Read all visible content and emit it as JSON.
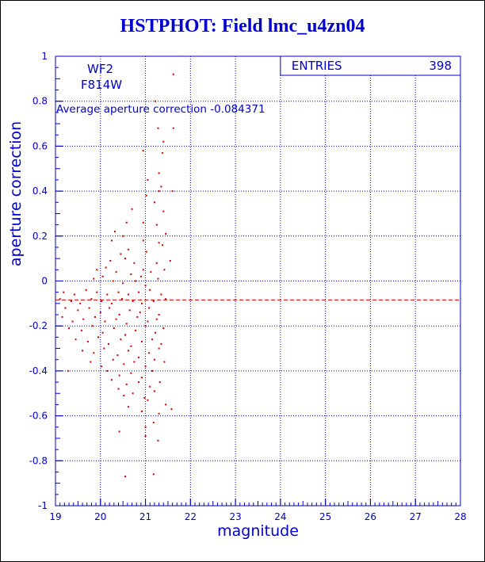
{
  "chart_data": {
    "type": "scatter",
    "title": "HSTPHOT: Field lmc_u4zn04",
    "xlabel": "magnitude",
    "ylabel": "aperture correction",
    "xlim": [
      19,
      28
    ],
    "ylim": [
      -1,
      1
    ],
    "xticks": [
      "19",
      "20",
      "21",
      "22",
      "23",
      "24",
      "25",
      "26",
      "27",
      "28"
    ],
    "yticks": [
      "-1",
      "-0.8",
      "-0.6",
      "-0.4",
      "-0.2",
      "0",
      "0.2",
      "0.4",
      "0.6",
      "0.8",
      "1"
    ],
    "grid": true,
    "labels": [
      "WF2",
      "F814W"
    ],
    "annotation": "Average aperture correction -0.084371",
    "stats": {
      "label": "ENTRIES",
      "value": "398"
    },
    "mean_line": -0.084371,
    "colors": {
      "axes": "#0000cc",
      "points": "#cc0000",
      "mean_line": "#cc0000",
      "title": "#0000cc"
    },
    "points": [
      [
        21.62,
        0.92
      ],
      [
        21.22,
        0.8
      ],
      [
        21.62,
        0.68
      ],
      [
        21.28,
        0.68
      ],
      [
        21.4,
        0.62
      ],
      [
        21.38,
        0.57
      ],
      [
        20.95,
        0.58
      ],
      [
        21.3,
        0.48
      ],
      [
        21.05,
        0.45
      ],
      [
        21.35,
        0.42
      ],
      [
        21.3,
        0.4
      ],
      [
        21.6,
        0.4
      ],
      [
        20.7,
        0.32
      ],
      [
        21.02,
        0.38
      ],
      [
        21.2,
        0.35
      ],
      [
        21.4,
        0.31
      ],
      [
        20.32,
        0.22
      ],
      [
        20.58,
        0.26
      ],
      [
        20.95,
        0.26
      ],
      [
        21.25,
        0.25
      ],
      [
        21.45,
        0.21
      ],
      [
        20.25,
        0.18
      ],
      [
        20.5,
        0.2
      ],
      [
        20.95,
        0.18
      ],
      [
        21.3,
        0.17
      ],
      [
        20.45,
        0.12
      ],
      [
        20.62,
        0.14
      ],
      [
        21.02,
        0.13
      ],
      [
        21.38,
        0.16
      ],
      [
        20.22,
        0.09
      ],
      [
        20.55,
        0.1
      ],
      [
        20.75,
        0.08
      ],
      [
        20.95,
        0.05
      ],
      [
        21.25,
        0.08
      ],
      [
        21.55,
        0.09
      ],
      [
        19.92,
        0.05
      ],
      [
        20.12,
        0.06
      ],
      [
        20.35,
        0.04
      ],
      [
        20.68,
        0.03
      ],
      [
        20.9,
        0.02
      ],
      [
        21.12,
        0.04
      ],
      [
        21.42,
        0.05
      ],
      [
        19.85,
        0.01
      ],
      [
        20.05,
        0.02
      ],
      [
        20.28,
        0.0
      ],
      [
        20.5,
        -0.01
      ],
      [
        20.78,
        0.0
      ],
      [
        21.0,
        -0.02
      ],
      [
        21.28,
        0.01
      ],
      [
        19.18,
        -0.05
      ],
      [
        19.42,
        -0.06
      ],
      [
        19.68,
        -0.04
      ],
      [
        19.92,
        -0.05
      ],
      [
        20.15,
        -0.06
      ],
      [
        20.4,
        -0.05
      ],
      [
        20.62,
        -0.06
      ],
      [
        20.85,
        -0.05
      ],
      [
        21.1,
        -0.04
      ],
      [
        21.35,
        -0.06
      ],
      [
        19.1,
        -0.08
      ],
      [
        19.35,
        -0.09
      ],
      [
        19.55,
        -0.1
      ],
      [
        19.8,
        -0.08
      ],
      [
        20.02,
        -0.09
      ],
      [
        20.25,
        -0.1
      ],
      [
        20.48,
        -0.08
      ],
      [
        20.72,
        -0.09
      ],
      [
        20.92,
        -0.1
      ],
      [
        21.18,
        -0.09
      ],
      [
        21.45,
        -0.08
      ],
      [
        19.22,
        -0.12
      ],
      [
        19.5,
        -0.13
      ],
      [
        19.75,
        -0.12
      ],
      [
        20.0,
        -0.14
      ],
      [
        20.2,
        -0.12
      ],
      [
        20.42,
        -0.15
      ],
      [
        20.65,
        -0.13
      ],
      [
        20.88,
        -0.14
      ],
      [
        21.08,
        -0.12
      ],
      [
        21.3,
        -0.15
      ],
      [
        19.15,
        -0.16
      ],
      [
        19.38,
        -0.18
      ],
      [
        19.62,
        -0.17
      ],
      [
        19.88,
        -0.16
      ],
      [
        20.1,
        -0.18
      ],
      [
        20.35,
        -0.17
      ],
      [
        20.58,
        -0.19
      ],
      [
        20.82,
        -0.16
      ],
      [
        21.05,
        -0.18
      ],
      [
        21.25,
        -0.17
      ],
      [
        19.3,
        -0.21
      ],
      [
        19.58,
        -0.22
      ],
      [
        19.82,
        -0.2
      ],
      [
        20.05,
        -0.23
      ],
      [
        20.3,
        -0.21
      ],
      [
        20.55,
        -0.24
      ],
      [
        20.78,
        -0.22
      ],
      [
        21.0,
        -0.2
      ],
      [
        21.22,
        -0.23
      ],
      [
        21.4,
        -0.21
      ],
      [
        19.45,
        -0.26
      ],
      [
        19.72,
        -0.27
      ],
      [
        19.95,
        -0.25
      ],
      [
        20.18,
        -0.28
      ],
      [
        20.45,
        -0.26
      ],
      [
        20.68,
        -0.29
      ],
      [
        20.92,
        -0.27
      ],
      [
        21.15,
        -0.26
      ],
      [
        21.35,
        -0.28
      ],
      [
        19.6,
        -0.31
      ],
      [
        19.85,
        -0.32
      ],
      [
        20.08,
        -0.3
      ],
      [
        20.38,
        -0.33
      ],
      [
        20.62,
        -0.31
      ],
      [
        20.85,
        -0.34
      ],
      [
        21.08,
        -0.32
      ],
      [
        21.3,
        -0.3
      ],
      [
        19.78,
        -0.36
      ],
      [
        20.02,
        -0.38
      ],
      [
        20.28,
        -0.35
      ],
      [
        20.52,
        -0.37
      ],
      [
        20.75,
        -0.36
      ],
      [
        21.0,
        -0.38
      ],
      [
        21.2,
        -0.35
      ],
      [
        21.42,
        -0.36
      ],
      [
        19.28,
        -0.4
      ],
      [
        20.15,
        -0.4
      ],
      [
        20.42,
        -0.42
      ],
      [
        20.68,
        -0.41
      ],
      [
        20.92,
        -0.43
      ],
      [
        21.15,
        -0.4
      ],
      [
        20.25,
        -0.44
      ],
      [
        20.58,
        -0.46
      ],
      [
        20.85,
        -0.45
      ],
      [
        21.1,
        -0.47
      ],
      [
        21.32,
        -0.45
      ],
      [
        20.4,
        -0.48
      ],
      [
        20.72,
        -0.5
      ],
      [
        20.98,
        -0.52
      ],
      [
        21.2,
        -0.49
      ],
      [
        20.52,
        -0.51
      ],
      [
        21.05,
        -0.53
      ],
      [
        21.45,
        -0.55
      ],
      [
        21.58,
        -0.57
      ],
      [
        20.62,
        -0.56
      ],
      [
        20.92,
        -0.58
      ],
      [
        21.3,
        -0.59
      ],
      [
        21.18,
        -0.63
      ],
      [
        21.0,
        -0.65
      ],
      [
        20.42,
        -0.67
      ],
      [
        21.0,
        -0.69
      ],
      [
        21.28,
        -0.71
      ],
      [
        21.18,
        -0.86
      ],
      [
        20.55,
        -0.87
      ]
    ]
  }
}
